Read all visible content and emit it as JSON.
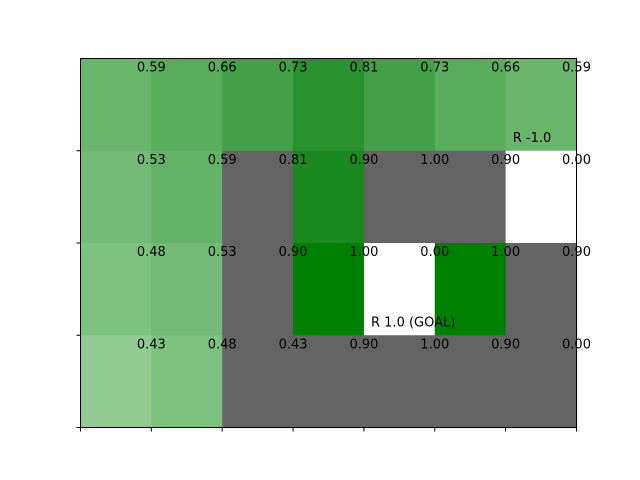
{
  "chart_data": {
    "type": "heatmap",
    "title": "",
    "xlabel": "",
    "ylabel": "",
    "rows": 4,
    "cols": 7,
    "cell_colors": [
      [
        "#68b56b",
        "#5aac5d",
        "#44a047",
        "#2b9230",
        "#44a047",
        "#5aac5d",
        "#68b56b"
      ],
      [
        "#72ba75",
        "#64b267",
        "#646464",
        "#1a891f",
        "#646464",
        "#646464",
        "#ffffff"
      ],
      [
        "#7dc17f",
        "#72ba75",
        "#646464",
        "#008000",
        "#ffffff",
        "#008000",
        "#646464"
      ],
      [
        "#91cb93",
        "#7dc17f",
        "#646464",
        "#646464",
        "#646464",
        "#646464",
        "#646464"
      ]
    ],
    "values": [
      [
        "0.59",
        "0.66",
        "0.73",
        "0.81",
        "0.73",
        "0.66",
        "0.59"
      ],
      [
        "0.53",
        "0.59",
        "0.81",
        "0.90",
        "1.00",
        "0.90",
        "0.00"
      ],
      [
        "0.48",
        "0.53",
        "0.90",
        "1.00",
        "0.00",
        "1.00",
        "0.90"
      ],
      [
        "0.43",
        "0.48",
        "0.43",
        "0.90",
        "1.00",
        "0.90",
        "0.00"
      ]
    ],
    "annotations": [
      {
        "row": 0,
        "col": 6,
        "text": "R -1.0"
      },
      {
        "row": 2,
        "col": 4,
        "text": "R 1.0 (GOAL)"
      }
    ],
    "grid": false,
    "legend": "none"
  }
}
